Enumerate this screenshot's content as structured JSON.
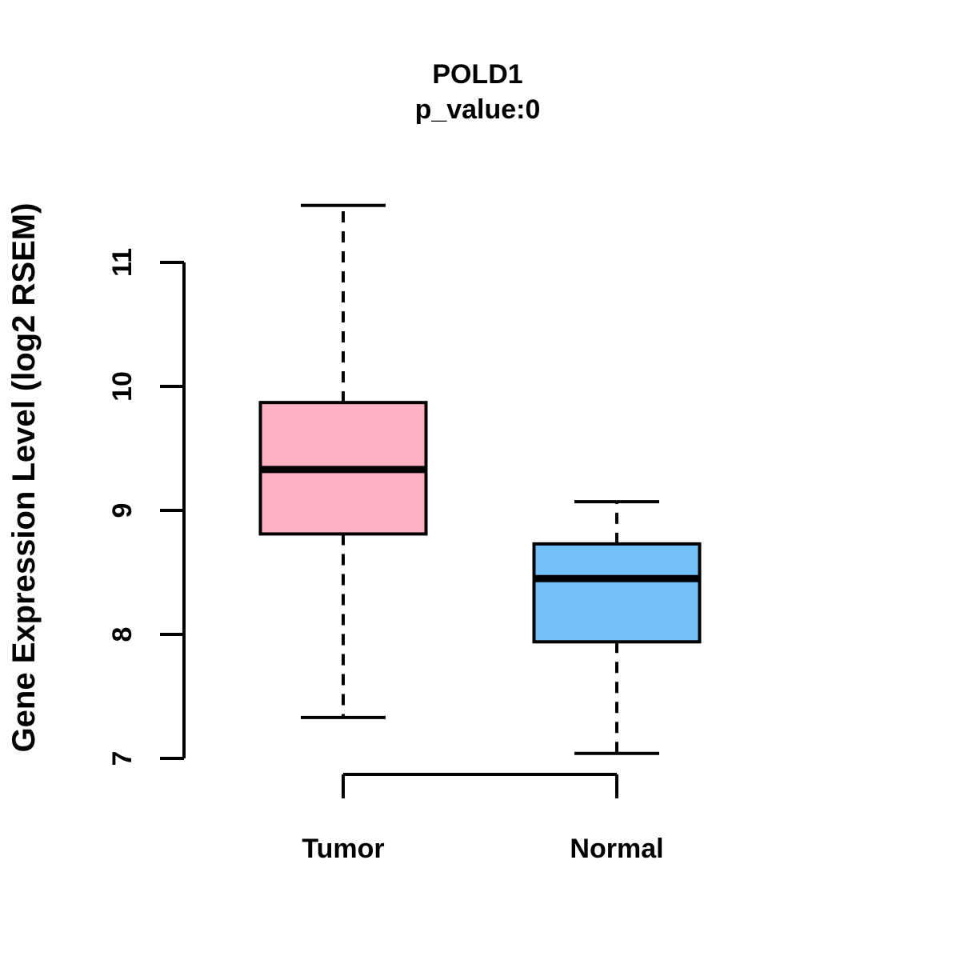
{
  "figure": {
    "background": "#FFFFFF"
  },
  "chart_data": {
    "type": "boxplot",
    "title": "POLD1",
    "subtitle": "p_value:0",
    "ylabel": "Gene Expression Level (log2 RSEM)",
    "xlabel": "",
    "y_ticks": [
      7,
      8,
      9,
      10,
      11
    ],
    "ylim": [
      6.8,
      11.6
    ],
    "grid": false,
    "legend": false,
    "line_color": "#000000",
    "categories": [
      "Tumor",
      "Normal"
    ],
    "groups": [
      {
        "label": "Tumor",
        "color": "#FFB0C1",
        "whisker_high": 11.46,
        "q3": 9.87,
        "median": 9.33,
        "q1": 8.81,
        "whisker_low": 7.33
      },
      {
        "label": "Normal",
        "color": "#73BFF7",
        "whisker_high": 9.07,
        "q3": 8.73,
        "median": 8.45,
        "q1": 7.94,
        "whisker_low": 7.04
      }
    ]
  }
}
